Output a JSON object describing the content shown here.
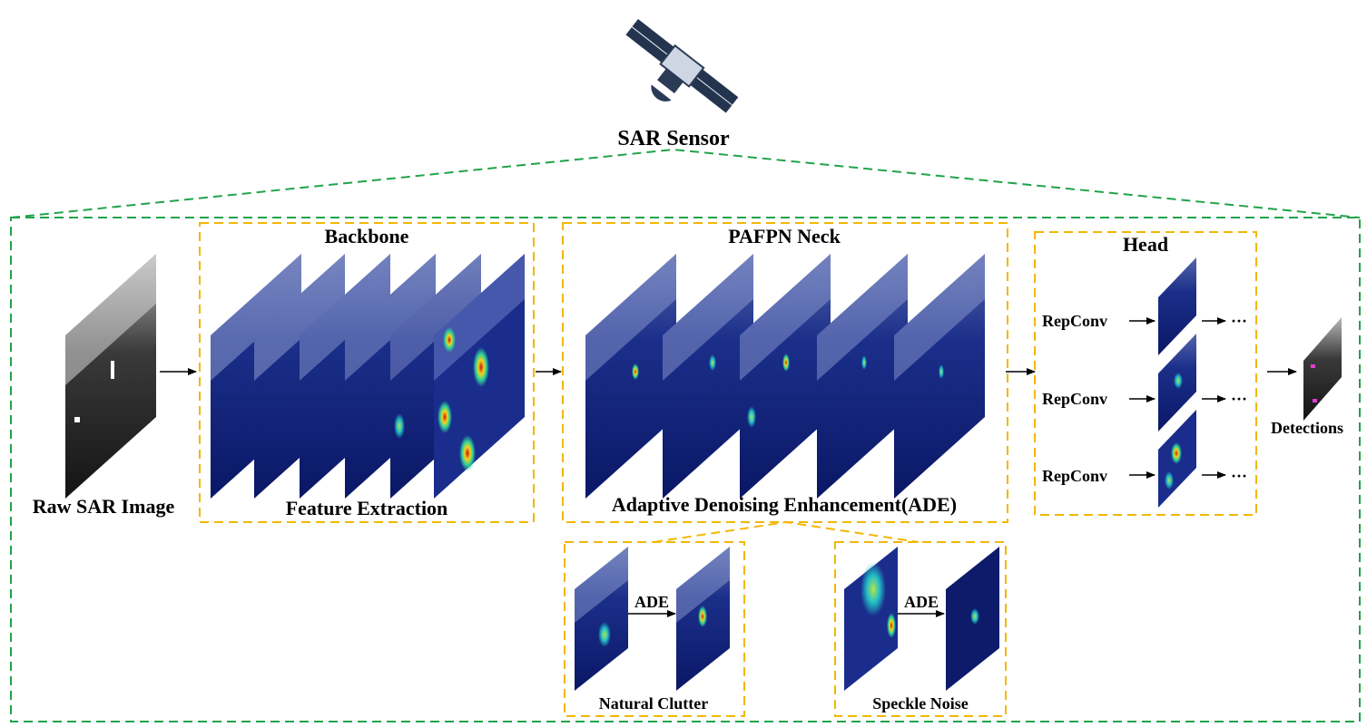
{
  "sensor": {
    "label": "SAR Sensor",
    "icon": "satellite-icon"
  },
  "input": {
    "label": "Raw SAR Image"
  },
  "backbone": {
    "title": "Backbone",
    "subtitle": "Feature Extraction"
  },
  "neck": {
    "title": "PAFPN Neck",
    "subtitle": "Adaptive Denoising Enhancement(ADE)"
  },
  "head": {
    "title": "Head",
    "branches": [
      {
        "op": "RepConv",
        "continuation": "···"
      },
      {
        "op": "RepConv",
        "continuation": "···"
      },
      {
        "op": "RepConv",
        "continuation": "···"
      }
    ]
  },
  "output": {
    "label": "Detections"
  },
  "ade_examples": [
    {
      "caption": "Natural Clutter",
      "op": "ADE"
    },
    {
      "caption": "Speckle Noise",
      "op": "ADE"
    }
  ],
  "colors": {
    "outer_dashed": "#22a34a",
    "module_dashed": "#f2b705",
    "map_background": "#0b1d6e",
    "map_texture": "#9aa6d6",
    "hot_spot": "#e23b1c",
    "satellite": "#2b3a55"
  }
}
